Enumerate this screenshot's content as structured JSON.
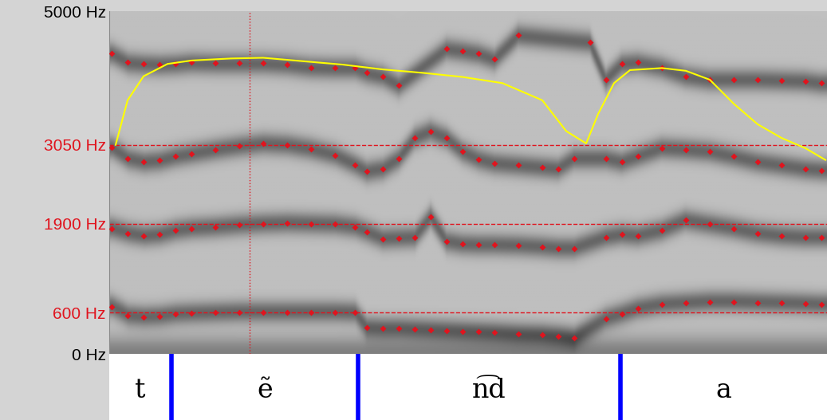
{
  "chart_data": {
    "type": "spectrogram",
    "xlim": [
      0,
      0.45
    ],
    "ylim": [
      0,
      5000
    ],
    "yticks": [
      {
        "value": 0,
        "label": "0 Hz"
      },
      {
        "value": 600,
        "label": "600 Hz"
      },
      {
        "value": 1900,
        "label": "1900 Hz"
      },
      {
        "value": 3050,
        "label": "3050 Hz"
      },
      {
        "value": 5000,
        "label": "5000 Hz"
      }
    ],
    "tick_labels": "y",
    "reference_lines": {
      "values": [
        600,
        1900,
        3050
      ],
      "color": "#e0141e",
      "line_style": "dashed"
    },
    "cursor": {
      "value": 0.088,
      "color": "#e0141e",
      "line_style": "dotted"
    },
    "series": [
      {
        "type": "scatter",
        "color": "#e0141e",
        "marker": "D",
        "x": [
          0.0015,
          0.0115,
          0.0215,
          0.0315,
          0.0415,
          0.0515,
          0.0665,
          0.0815,
          0.0965,
          0.1115,
          0.1265,
          0.1415,
          0.154,
          0.1615,
          0.1715,
          0.1815,
          0.1915,
          0.2015,
          0.2115,
          0.2215,
          0.2315,
          0.2415,
          0.2565,
          0.2715,
          0.2815,
          0.2915,
          0.3015,
          0.3115,
          0.3215,
          0.3315,
          0.3465,
          0.3615,
          0.3765,
          0.3915,
          0.4065,
          0.4215,
          0.4365,
          0.4465
        ],
        "values": [
          690,
          560,
          540,
          550,
          580,
          590,
          600,
          610,
          610,
          610,
          610,
          610,
          600,
          380,
          370,
          370,
          360,
          350,
          340,
          330,
          320,
          310,
          290,
          280,
          260,
          230,
          null,
          510,
          580,
          660,
          720,
          740,
          760,
          760,
          750,
          740,
          730,
          720
        ]
      },
      {
        "type": "scatter",
        "color": "#e0141e",
        "marker": "D",
        "x": [
          0.0015,
          0.0115,
          0.0215,
          0.0315,
          0.0415,
          0.0515,
          0.0665,
          0.0815,
          0.0965,
          0.1115,
          0.1265,
          0.1415,
          0.154,
          0.1615,
          0.1715,
          0.1815,
          0.1915,
          0.2015,
          0.2115,
          0.2215,
          0.2315,
          0.2415,
          0.2565,
          0.2715,
          0.2815,
          0.2915,
          0.3015,
          0.3115,
          0.3215,
          0.3315,
          0.3465,
          0.3615,
          0.3765,
          0.3915,
          0.4065,
          0.4215,
          0.4365,
          0.4465
        ],
        "values": [
          1830,
          1760,
          1720,
          1740,
          1800,
          1830,
          1850,
          1880,
          1900,
          1910,
          1900,
          1890,
          1850,
          1780,
          1680,
          1690,
          1700,
          2000,
          1640,
          1600,
          1590,
          1590,
          1580,
          1560,
          1540,
          1540,
          null,
          1700,
          1740,
          1720,
          1800,
          1950,
          1890,
          1830,
          1760,
          1720,
          1700,
          1700
        ]
      },
      {
        "type": "scatter",
        "color": "#e0141e",
        "marker": "D",
        "x": [
          0.0015,
          0.0115,
          0.0215,
          0.0315,
          0.0415,
          0.0515,
          0.0665,
          0.0815,
          0.0965,
          0.1115,
          0.1265,
          0.1415,
          0.154,
          0.1615,
          0.1715,
          0.1815,
          0.1915,
          0.2015,
          0.2115,
          0.2215,
          0.2315,
          0.2415,
          0.2565,
          0.2715,
          0.2815,
          0.2915,
          0.3015,
          0.3115,
          0.3215,
          0.3315,
          0.3465,
          0.3615,
          0.3765,
          0.3915,
          0.4065,
          0.4215,
          0.4365,
          0.4465
        ],
        "values": [
          3010,
          2850,
          2800,
          2820,
          2880,
          2920,
          2980,
          3030,
          3070,
          3050,
          2990,
          2900,
          2760,
          2660,
          2700,
          2850,
          3150,
          3250,
          3150,
          2950,
          2840,
          2780,
          2750,
          2720,
          2700,
          2850,
          null,
          2850,
          2800,
          2880,
          3000,
          2980,
          2950,
          2880,
          2800,
          2750,
          2700,
          2680
        ]
      },
      {
        "type": "scatter",
        "color": "#e0141e",
        "marker": "D",
        "x": [
          0.0015,
          0.0115,
          0.0215,
          0.0315,
          0.0415,
          0.0515,
          0.0665,
          0.0815,
          0.0965,
          0.1115,
          0.1265,
          0.1415,
          0.154,
          0.1615,
          0.1715,
          0.1815,
          0.1915,
          0.2015,
          0.2115,
          0.2215,
          0.2315,
          0.2415,
          0.2565,
          0.2715,
          0.2815,
          0.2915,
          0.3015,
          0.3115,
          0.3215,
          0.3315,
          0.3465,
          0.3615,
          0.3765,
          0.3915,
          0.4065,
          0.4215,
          0.4365,
          0.4465
        ],
        "values": [
          4380,
          4250,
          4230,
          4220,
          4230,
          4250,
          4240,
          4240,
          4240,
          4220,
          4180,
          4170,
          4170,
          4100,
          4050,
          3920,
          null,
          null,
          4450,
          4420,
          4380,
          4300,
          4650,
          null,
          null,
          null,
          4550,
          4000,
          4230,
          4250,
          4180,
          4050,
          4000,
          4000,
          4000,
          3990,
          3980,
          3950
        ]
      },
      {
        "type": "line",
        "color": "#ffff00",
        "line_style": "solid",
        "x": [
          0.004,
          0.0115,
          0.0215,
          0.0365,
          0.0515,
          0.0765,
          0.0965,
          0.1215,
          0.1465,
          0.1715,
          0.1965,
          0.2215,
          0.2465,
          0.2715,
          0.2865,
          0.299,
          0.3065,
          0.3165,
          0.3265,
          0.3465,
          0.3615,
          0.3765,
          0.3915,
          0.4065,
          0.4215,
          0.4365,
          0.449
        ],
        "values": [
          3050,
          3700,
          4050,
          4230,
          4280,
          4310,
          4320,
          4270,
          4220,
          4150,
          4100,
          4040,
          3950,
          3700,
          3250,
          3070,
          3500,
          3950,
          4140,
          4170,
          4130,
          4000,
          3650,
          3350,
          3150,
          3000,
          2830
        ]
      }
    ],
    "segments": {
      "labels": [
        "t",
        "ẽ",
        "n͡d",
        "a"
      ],
      "boundaries": [
        0.039,
        0.156,
        0.3205
      ],
      "color": "#0000ff"
    }
  }
}
